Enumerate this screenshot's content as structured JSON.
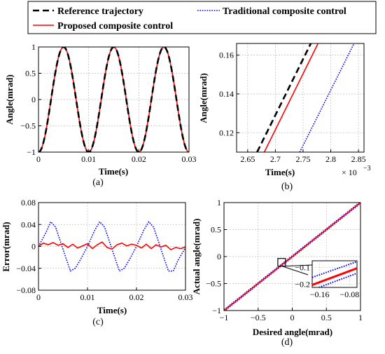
{
  "legend": {
    "items": [
      {
        "label": "Reference trajectory",
        "color": "#000000",
        "style": "dashed"
      },
      {
        "label": "Traditional composite control",
        "color": "#0000ff",
        "style": "dotted"
      },
      {
        "label": "Proposed composite control",
        "color": "#ff0000",
        "style": "solid"
      }
    ]
  },
  "colors": {
    "reference": "#000000",
    "traditional": "#0000ff",
    "proposed": "#ff0000"
  },
  "chart_data": [
    {
      "id": "a",
      "panel_label": "(a)",
      "type": "line",
      "xlabel": "Time(s)",
      "ylabel": "Angle(mrad)",
      "xlim": [
        0,
        0.03
      ],
      "ylim": [
        -1,
        1
      ],
      "xticks": [
        0,
        0.01,
        0.02,
        0.03
      ],
      "xtick_labels": [
        "0",
        "0.01",
        "0.02",
        "0.03"
      ],
      "yticks": [
        -1,
        -0.5,
        0,
        0.5,
        1
      ],
      "ytick_labels": [
        "−1",
        "−0.5",
        "0",
        "0.5",
        "1"
      ],
      "grid": true,
      "series": [
        {
          "name": "Reference trajectory",
          "function": "y = sin(200*pi*x - pi/2)",
          "x_range": [
            0,
            0.03
          ]
        },
        {
          "name": "Traditional composite control",
          "function": "y ≈ sin(200*pi*x - pi/2) (overlaps reference)",
          "x_range": [
            0,
            0.03
          ]
        },
        {
          "name": "Proposed composite control",
          "function": "y ≈ sin(200*pi*x - pi/2) (overlaps reference)",
          "x_range": [
            0,
            0.03
          ]
        }
      ]
    },
    {
      "id": "b",
      "panel_label": "(b)",
      "type": "line",
      "xlabel": "Time(s)",
      "ylabel": "Angle(mrad)",
      "xlim": [
        2.63,
        2.86
      ],
      "ylim": [
        0.11,
        0.166
      ],
      "x_multiplier": "× 10",
      "x_multiplier_exp": "−3",
      "xticks": [
        2.65,
        2.7,
        2.75,
        2.8,
        2.85
      ],
      "xtick_labels": [
        "2.65",
        "2.7",
        "2.75",
        "2.8",
        "2.85"
      ],
      "yticks": [
        0.12,
        0.14,
        0.16
      ],
      "ytick_labels": [
        "0.12",
        "0.14",
        "0.16"
      ],
      "grid": true,
      "series": [
        {
          "name": "Reference trajectory",
          "x": [
            2.667,
            2.764
          ],
          "y": [
            0.11,
            0.166
          ]
        },
        {
          "name": "Proposed composite control",
          "x": [
            2.68,
            2.777
          ],
          "y": [
            0.11,
            0.166
          ]
        },
        {
          "name": "Traditional composite control",
          "x": [
            2.744,
            2.842
          ],
          "y": [
            0.11,
            0.166
          ]
        }
      ]
    },
    {
      "id": "c",
      "panel_label": "(c)",
      "type": "line",
      "xlabel": "Time(s)",
      "ylabel": "Error(mrad)",
      "xlim": [
        0,
        0.03
      ],
      "ylim": [
        -0.08,
        0.08
      ],
      "xticks": [
        0,
        0.01,
        0.02,
        0.03
      ],
      "xtick_labels": [
        "0",
        "0.01",
        "0.02",
        "0.03"
      ],
      "yticks": [
        -0.08,
        -0.04,
        0,
        0.04,
        0.08
      ],
      "ytick_labels": [
        "−0.08",
        "−0.04",
        "0",
        "0.04",
        "0.08"
      ],
      "grid": true,
      "series": [
        {
          "name": "Traditional composite control",
          "x": [
            0,
            0.0015,
            0.0025,
            0.0035,
            0.005,
            0.0065,
            0.0075,
            0.0085,
            0.01,
            0.0115,
            0.0125,
            0.0135,
            0.015,
            0.0165,
            0.0175,
            0.0185,
            0.02,
            0.0215,
            0.0225,
            0.0235,
            0.025,
            0.0265,
            0.0275,
            0.0285,
            0.03
          ],
          "y": [
            0.0,
            0.025,
            0.045,
            0.035,
            -0.005,
            -0.045,
            -0.04,
            -0.025,
            0.0,
            0.03,
            0.045,
            0.035,
            -0.005,
            -0.045,
            -0.04,
            -0.025,
            0.0,
            0.03,
            0.045,
            0.035,
            -0.005,
            -0.045,
            -0.045,
            -0.025,
            -0.002
          ]
        },
        {
          "name": "Proposed composite control",
          "x": [
            0,
            0.001,
            0.002,
            0.003,
            0.004,
            0.005,
            0.006,
            0.007,
            0.008,
            0.009,
            0.01,
            0.011,
            0.012,
            0.013,
            0.014,
            0.015,
            0.016,
            0.017,
            0.018,
            0.019,
            0.02,
            0.021,
            0.022,
            0.023,
            0.024,
            0.025,
            0.026,
            0.027,
            0.028,
            0.029,
            0.03
          ],
          "y": [
            0.0,
            0.006,
            0.003,
            0.007,
            0.002,
            0.005,
            -0.002,
            0.004,
            -0.003,
            0.001,
            0.005,
            -0.004,
            0.003,
            0.008,
            -0.002,
            -0.005,
            0.003,
            0.006,
            0.001,
            0.004,
            0.002,
            -0.003,
            0.004,
            -0.004,
            0.003,
            -0.001,
            0.002,
            -0.006,
            -0.002,
            -0.004,
            -0.001
          ]
        }
      ]
    },
    {
      "id": "d",
      "panel_label": "(d)",
      "type": "line",
      "xlabel": "Desired angle(mrad)",
      "ylabel": "Actual angle(mrad)",
      "xlim": [
        -1,
        1
      ],
      "ylim": [
        -1,
        1
      ],
      "xticks": [
        -1,
        -0.5,
        0,
        0.5,
        1
      ],
      "xtick_labels": [
        "−1",
        "−0.5",
        "0",
        "0.5",
        "1"
      ],
      "yticks": [
        -1,
        -0.5,
        0,
        0.5,
        1
      ],
      "ytick_labels": [
        "−1",
        "−0.5",
        "0",
        "0.5",
        "1"
      ],
      "grid": true,
      "series": [
        {
          "name": "Traditional composite control",
          "x": [
            -1,
            1
          ],
          "y": [
            -1,
            1
          ]
        },
        {
          "name": "Proposed composite control",
          "x": [
            -1,
            1
          ],
          "y": [
            -1,
            1
          ]
        }
      ],
      "inset": {
        "xlim": [
          -0.18,
          -0.06
        ],
        "ylim": [
          -0.22,
          -0.06
        ],
        "xticks": [
          -0.16,
          -0.08
        ],
        "xtick_labels": [
          "−0.16",
          "−0.08"
        ],
        "yticks": [
          -0.2,
          -0.1
        ],
        "ytick_labels": [
          "−0.2",
          "−0.1"
        ],
        "series": [
          {
            "name": "Traditional composite control (upper)",
            "x": [
              -0.18,
              -0.06
            ],
            "y": [
              -0.16,
              -0.065
            ]
          },
          {
            "name": "Proposed composite control",
            "x": [
              -0.18,
              -0.06
            ],
            "y": [
              -0.205,
              -0.105
            ]
          },
          {
            "name": "Traditional composite control (lower)",
            "x": [
              -0.18,
              -0.06
            ],
            "y": [
              -0.235,
              -0.135
            ]
          }
        ]
      }
    }
  ]
}
